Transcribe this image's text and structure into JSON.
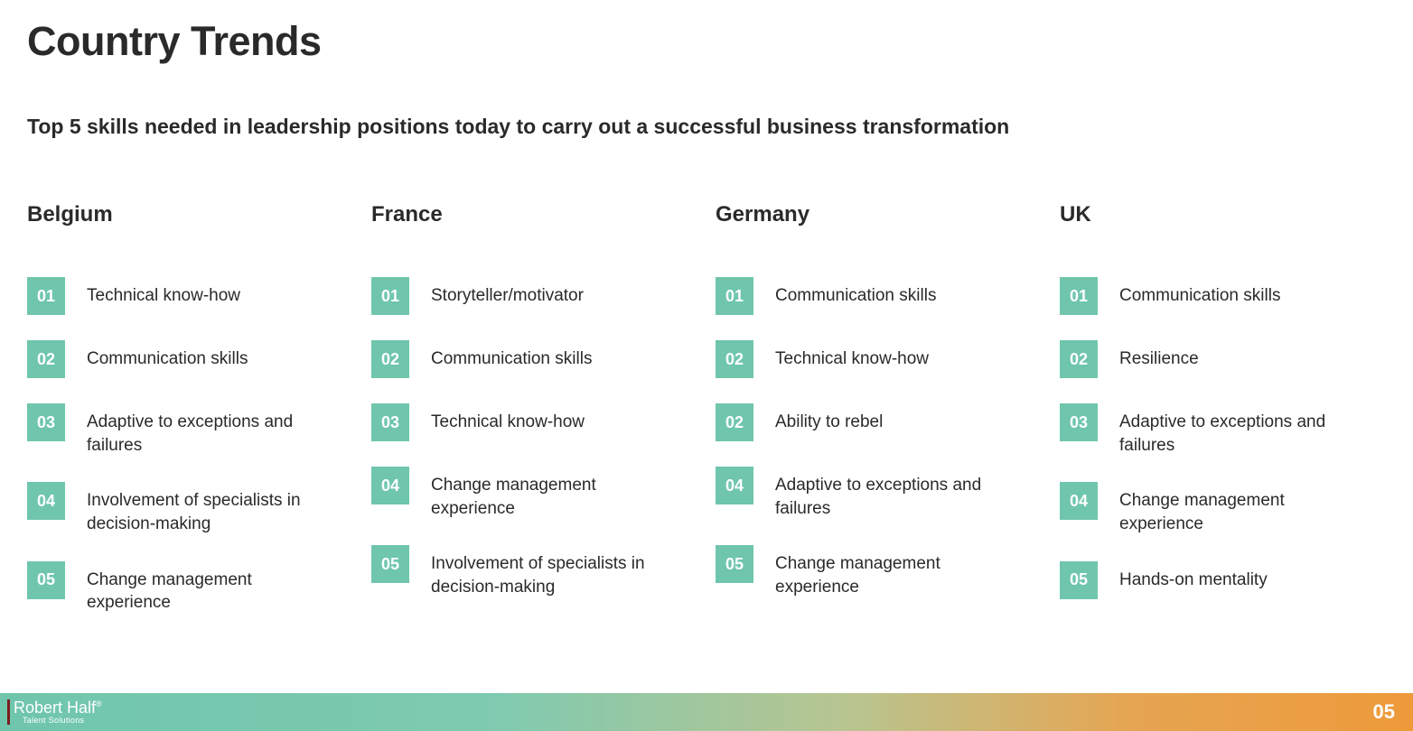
{
  "title": "Country Trends",
  "subtitle": "Top 5 skills needed in leadership positions today to carry out a successful business transformation",
  "badge_bg": "#6fc6ac",
  "badge_text_color": "#ffffff",
  "text_color": "#2a2a2a",
  "background_color": "#ffffff",
  "columns": [
    {
      "country": "Belgium",
      "items": [
        {
          "num": "01",
          "skill": "Technical know-how"
        },
        {
          "num": "02",
          "skill": "Communication skills"
        },
        {
          "num": "03",
          "skill": "Adaptive to exceptions and failures"
        },
        {
          "num": "04",
          "skill": "Involvement of specialists in decision-making"
        },
        {
          "num": "05",
          "skill": "Change management experience"
        }
      ]
    },
    {
      "country": "France",
      "items": [
        {
          "num": "01",
          "skill": "Storyteller/motivator"
        },
        {
          "num": "02",
          "skill": "Communication skills"
        },
        {
          "num": "03",
          "skill": "Technical know-how"
        },
        {
          "num": "04",
          "skill": "Change management experience"
        },
        {
          "num": "05",
          "skill": "Involvement of specialists in decision-making"
        }
      ]
    },
    {
      "country": "Germany",
      "items": [
        {
          "num": "01",
          "skill": "Communication skills"
        },
        {
          "num": "02",
          "skill": "Technical know-how"
        },
        {
          "num": "02",
          "skill": "Ability to rebel"
        },
        {
          "num": "04",
          "skill": "Adaptive to exceptions and failures"
        },
        {
          "num": "05",
          "skill": "Change management experience"
        }
      ]
    },
    {
      "country": "UK",
      "items": [
        {
          "num": "01",
          "skill": "Communication skills"
        },
        {
          "num": "02",
          "skill": "Resilience"
        },
        {
          "num": "03",
          "skill": "Adaptive to exceptions and failures"
        },
        {
          "num": "04",
          "skill": "Change management experience"
        },
        {
          "num": "05",
          "skill": "Hands-on mentality"
        }
      ]
    }
  ],
  "footer": {
    "brand_main": "Robert Half",
    "brand_sup": "®",
    "brand_sub": "Talent Solutions",
    "page_number": "05",
    "gradient_from": "#6fc6ac",
    "gradient_to": "#ee9a3a",
    "left_bar_color": "#7a1e1e"
  }
}
